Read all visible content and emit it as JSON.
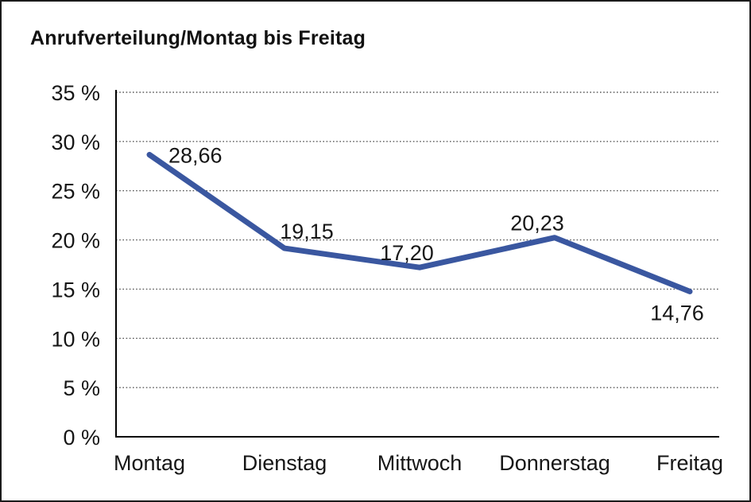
{
  "chart_data": {
    "type": "line",
    "title": "Anrufverteilung/Montag bis Freitag",
    "xlabel": "",
    "ylabel": "",
    "categories": [
      "Montag",
      "Dienstag",
      "Mittwoch",
      "Donnerstag",
      "Freitag"
    ],
    "series": [
      {
        "name": "Anrufverteilung",
        "values": [
          28.66,
          19.15,
          17.2,
          20.23,
          14.76
        ]
      }
    ],
    "point_labels": [
      "28,66",
      "19,15",
      "17,20",
      "20,23",
      "14,76"
    ],
    "ylim": [
      0,
      35
    ],
    "ytick_step": 5,
    "ytick_labels": [
      "0 %",
      "5 %",
      "10 %",
      "15 %",
      "20 %",
      "25 %",
      "30 %",
      "35 %"
    ],
    "grid": "horizontal-dotted",
    "legend": "none",
    "colors": {
      "line": "#3A57A0",
      "axis": "#000000",
      "grid": "#5a5a5a",
      "text": "#161616",
      "frame_border": "#1b1b1b",
      "background": "#ffffff"
    }
  }
}
